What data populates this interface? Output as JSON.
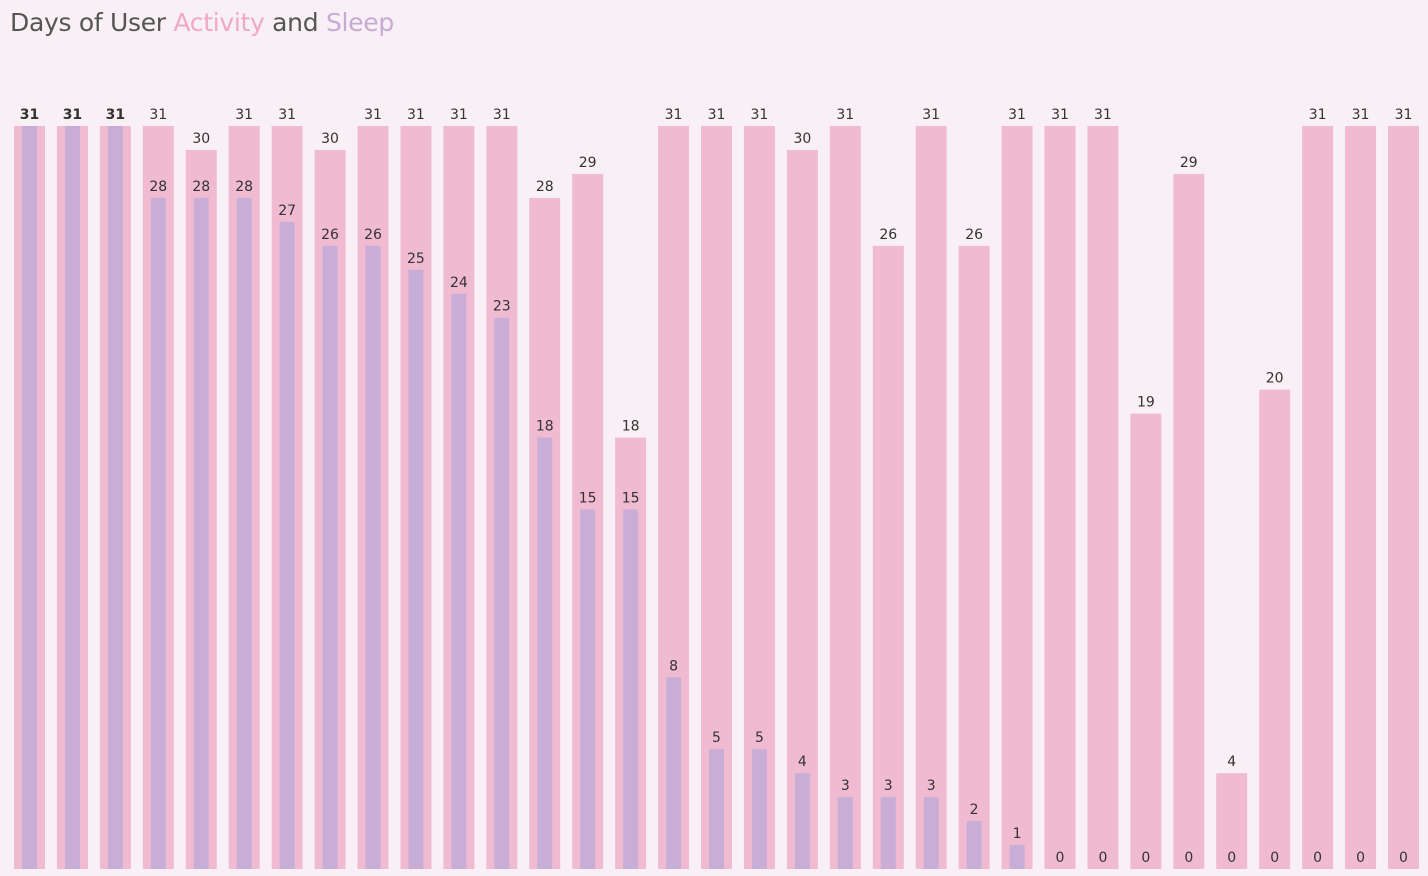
{
  "title": {
    "prefix": "Days of User ",
    "activity_word": "Activity",
    "middle": " and ",
    "sleep_word": "Sleep"
  },
  "colors": {
    "activity": "#f0bbd0",
    "sleep": "#c8aed6",
    "background": "#f8f0f5",
    "label": "#333333",
    "title_activity": "#f0a8c4",
    "title_sleep": "#c8aad4"
  },
  "chart_data": {
    "type": "bar",
    "title": "Days of User Activity and Sleep",
    "xlabel": "",
    "ylabel": "",
    "ylim": [
      0,
      31
    ],
    "grid": false,
    "series": [
      {
        "name": "Activity",
        "values": [
          31,
          31,
          31,
          31,
          30,
          31,
          31,
          30,
          31,
          31,
          31,
          31,
          28,
          29,
          18,
          31,
          31,
          31,
          30,
          31,
          26,
          31,
          26,
          31,
          31,
          31,
          19,
          29,
          4,
          20,
          31,
          31,
          31
        ]
      },
      {
        "name": "Sleep",
        "values": [
          31,
          31,
          31,
          28,
          28,
          28,
          27,
          26,
          26,
          25,
          24,
          23,
          18,
          15,
          15,
          8,
          5,
          5,
          4,
          3,
          3,
          3,
          2,
          1,
          0,
          0,
          0,
          0,
          0,
          0,
          0,
          0,
          0
        ]
      }
    ]
  }
}
